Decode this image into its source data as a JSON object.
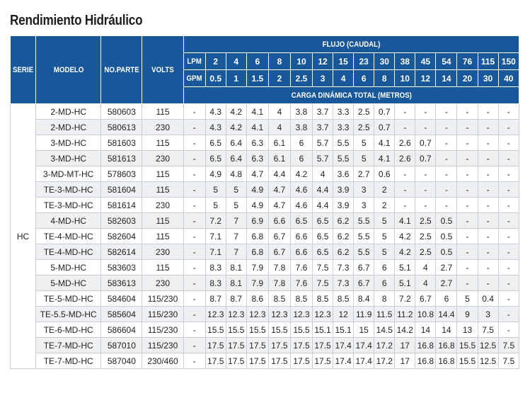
{
  "title": "Rendimiento Hidráulico",
  "headers": {
    "serie": "SERIE",
    "modelo": "MODELO",
    "no_parte": "NO.PARTE",
    "volts": "VOLTS",
    "flujo": "FLUJO (CAUDAL)",
    "lpm_label": "LPM",
    "gpm_label": "GPM",
    "carga": "CARGA DINÁMICA TOTAL (METROS)"
  },
  "lpm": [
    "2",
    "4",
    "6",
    "8",
    "10",
    "12",
    "15",
    "23",
    "30",
    "38",
    "45",
    "54",
    "76",
    "115",
    "150"
  ],
  "gpm": [
    "0.5",
    "1",
    "1.5",
    "2",
    "2.5",
    "3",
    "4",
    "6",
    "8",
    "10",
    "12",
    "14",
    "20",
    "30",
    "40"
  ],
  "serie_value": "HC",
  "rows": [
    {
      "modelo": "2-MD-HC",
      "parte": "580603",
      "volts": "115",
      "c0": "-",
      "h": [
        "4.3",
        "4.2",
        "4.1",
        "4",
        "3.8",
        "3.7",
        "3.3",
        "2.5",
        "0.7",
        "-",
        "-",
        "-",
        "-",
        "-",
        "-"
      ]
    },
    {
      "modelo": "2-MD-HC",
      "parte": "580613",
      "volts": "230",
      "c0": "-",
      "h": [
        "4.3",
        "4.2",
        "4.1",
        "4",
        "3.8",
        "3.7",
        "3.3",
        "2.5",
        "0.7",
        "-",
        "-",
        "-",
        "-",
        "-",
        "-"
      ]
    },
    {
      "modelo": "3-MD-HC",
      "parte": "581603",
      "volts": "115",
      "c0": "-",
      "h": [
        "6.5",
        "6.4",
        "6.3",
        "6.1",
        "6",
        "5.7",
        "5.5",
        "5",
        "4.1",
        "2.6",
        "0.7",
        "-",
        "-",
        "-",
        "-"
      ]
    },
    {
      "modelo": "3-MD-HC",
      "parte": "581613",
      "volts": "230",
      "c0": "-",
      "h": [
        "6.5",
        "6.4",
        "6.3",
        "6.1",
        "6",
        "5.7",
        "5.5",
        "5",
        "4.1",
        "2.6",
        "0.7",
        "-",
        "-",
        "-",
        "-"
      ]
    },
    {
      "modelo": "3-MD-MT-HC",
      "parte": "578603",
      "volts": "115",
      "c0": "-",
      "h": [
        "4.9",
        "4.8",
        "4.7",
        "4.4",
        "4.2",
        "4",
        "3.6",
        "2.7",
        "0.6",
        "-",
        "-",
        "-",
        "-",
        "-",
        "-"
      ]
    },
    {
      "modelo": "TE-3-MD-HC",
      "parte": "581604",
      "volts": "115",
      "c0": "-",
      "h": [
        "5",
        "5",
        "4.9",
        "4.7",
        "4.6",
        "4.4",
        "3.9",
        "3",
        "2",
        "-",
        "-",
        "-",
        "-",
        "-",
        "-"
      ]
    },
    {
      "modelo": "TE-3-MD-HC",
      "parte": "581614",
      "volts": "230",
      "c0": "-",
      "h": [
        "5",
        "5",
        "4.9",
        "4.7",
        "4.6",
        "4.4",
        "3.9",
        "3",
        "2",
        "-",
        "-",
        "-",
        "-",
        "-",
        "-"
      ]
    },
    {
      "modelo": "4-MD-HC",
      "parte": "582603",
      "volts": "115",
      "c0": "-",
      "h": [
        "7.2",
        "7",
        "6.9",
        "6.6",
        "6.5",
        "6.5",
        "6.2",
        "5.5",
        "5",
        "4.1",
        "2.5",
        "0.5",
        "-",
        "-",
        "-"
      ]
    },
    {
      "modelo": "TE-4-MD-HC",
      "parte": "582604",
      "volts": "115",
      "c0": "-",
      "h": [
        "7.1",
        "7",
        "6.8",
        "6.7",
        "6.6",
        "6.5",
        "6.2",
        "5.5",
        "5",
        "4.2",
        "2.5",
        "0.5",
        "-",
        "-",
        "-"
      ]
    },
    {
      "modelo": "TE-4-MD-HC",
      "parte": "582614",
      "volts": "230",
      "c0": "-",
      "h": [
        "7.1",
        "7",
        "6.8",
        "6.7",
        "6.6",
        "6.5",
        "6.2",
        "5.5",
        "5",
        "4.2",
        "2.5",
        "0.5",
        "-",
        "-",
        "-"
      ]
    },
    {
      "modelo": "5-MD-HC",
      "parte": "583603",
      "volts": "115",
      "c0": "-",
      "h": [
        "8.3",
        "8.1",
        "7.9",
        "7.8",
        "7.6",
        "7.5",
        "7.3",
        "6.7",
        "6",
        "5.1",
        "4",
        "2.7",
        "-",
        "-",
        "-"
      ]
    },
    {
      "modelo": "5-MD-HC",
      "parte": "583613",
      "volts": "230",
      "c0": "-",
      "h": [
        "8.3",
        "8.1",
        "7.9",
        "7.8",
        "7.6",
        "7.5",
        "7.3",
        "6.7",
        "6",
        "5.1",
        "4",
        "2.7",
        "-",
        "-",
        "-"
      ]
    },
    {
      "modelo": "TE-5-MD-HC",
      "parte": "584604",
      "volts": "115/230",
      "c0": "-",
      "h": [
        "8.7",
        "8.7",
        "8.6",
        "8.5",
        "8.5",
        "8.5",
        "8.5",
        "8.4",
        "8",
        "7.2",
        "6.7",
        "6",
        "5",
        "0.4",
        "-"
      ]
    },
    {
      "modelo": "TE-5.5-MD-HC",
      "parte": "585604",
      "volts": "115/230",
      "c0": "-",
      "h": [
        "12.3",
        "12.3",
        "12.3",
        "12.3",
        "12.3",
        "12.3",
        "12",
        "11.9",
        "11.5",
        "11.2",
        "10.8",
        "14.4",
        "9",
        "3",
        "-"
      ]
    },
    {
      "modelo": "TE-6-MD-HC",
      "parte": "586604",
      "volts": "115/230",
      "c0": "-",
      "h": [
        "15.5",
        "15.5",
        "15.5",
        "15.5",
        "15.5",
        "15.1",
        "15.1",
        "15",
        "14.5",
        "14.2",
        "14",
        "14",
        "13",
        "7.5",
        "-"
      ]
    },
    {
      "modelo": "TE-7-MD-HC",
      "parte": "587010",
      "volts": "115/230",
      "c0": "-",
      "h": [
        "17.5",
        "17.5",
        "17.5",
        "17.5",
        "17.5",
        "17.5",
        "17.4",
        "17.4",
        "17.2",
        "17",
        "16.8",
        "16.8",
        "15.5",
        "12.5",
        "7.5"
      ]
    },
    {
      "modelo": "TE-7-MD-HC",
      "parte": "587040",
      "volts": "230/460",
      "c0": "-",
      "h": [
        "17.5",
        "17.5",
        "17.5",
        "17.5",
        "17.5",
        "17.5",
        "17.4",
        "17.4",
        "17.2",
        "17",
        "16.8",
        "16.8",
        "15.5",
        "12.5",
        "7.5"
      ]
    }
  ]
}
